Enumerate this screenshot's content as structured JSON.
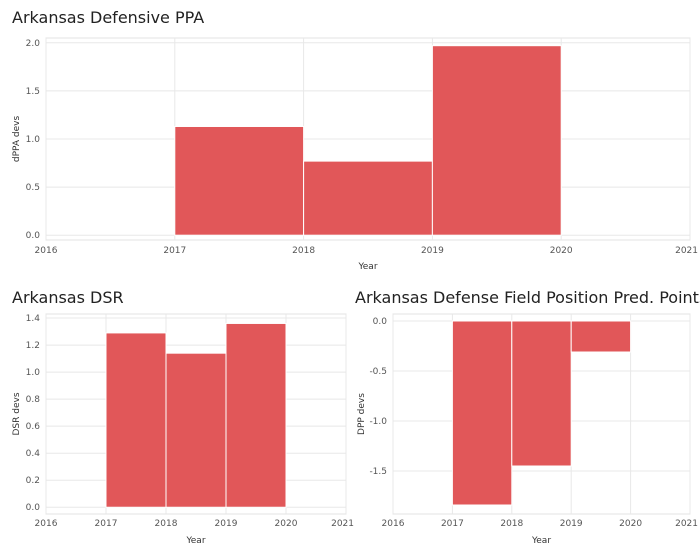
{
  "chart_data": [
    {
      "type": "bar",
      "title": "Arkansas Defensive PPA",
      "xlabel": "Year",
      "ylabel": "dPPA devs",
      "x_ticks": [
        "2016",
        "2017",
        "2018",
        "2019",
        "2020",
        "2021"
      ],
      "y_ticks": [
        "0.0",
        "0.5",
        "1.0",
        "1.5",
        "2.0"
      ],
      "xlim": [
        2016,
        2021
      ],
      "ylim": [
        -0.05,
        2.05
      ],
      "bars": [
        {
          "x0": 2017,
          "x1": 2018,
          "value": 1.13
        },
        {
          "x0": 2018,
          "x1": 2019,
          "value": 0.77
        },
        {
          "x0": 2019,
          "x1": 2020,
          "value": 1.97
        }
      ],
      "color": "#e15759",
      "grid": true
    },
    {
      "type": "bar",
      "title": "Arkansas DSR",
      "xlabel": "Year",
      "ylabel": "DSR devs",
      "x_ticks": [
        "2016",
        "2017",
        "2018",
        "2019",
        "2020",
        "2021"
      ],
      "y_ticks": [
        "0.0",
        "0.2",
        "0.4",
        "0.6",
        "0.8",
        "1.0",
        "1.2",
        "1.4"
      ],
      "xlim": [
        2016,
        2021
      ],
      "ylim": [
        -0.05,
        1.43
      ],
      "bars": [
        {
          "x0": 2017,
          "x1": 2018,
          "value": 1.29
        },
        {
          "x0": 2018,
          "x1": 2019,
          "value": 1.14
        },
        {
          "x0": 2019,
          "x1": 2020,
          "value": 1.36
        }
      ],
      "color": "#e15759",
      "grid": true
    },
    {
      "type": "bar",
      "title": "Arkansas Defense Field Position Pred. Points",
      "xlabel": "Year",
      "ylabel": "DPP devs",
      "x_ticks": [
        "2016",
        "2017",
        "2018",
        "2019",
        "2020",
        "2021"
      ],
      "y_ticks": [
        "0.0",
        "-0.5",
        "-1.0",
        "-1.5"
      ],
      "xlim": [
        2016,
        2021
      ],
      "ylim": [
        -1.93,
        0.07
      ],
      "bars": [
        {
          "x0": 2017,
          "x1": 2018,
          "value": -1.84
        },
        {
          "x0": 2018,
          "x1": 2019,
          "value": -1.45
        },
        {
          "x0": 2019,
          "x1": 2020,
          "value": -0.31
        }
      ],
      "color": "#e15759",
      "grid": true
    }
  ]
}
